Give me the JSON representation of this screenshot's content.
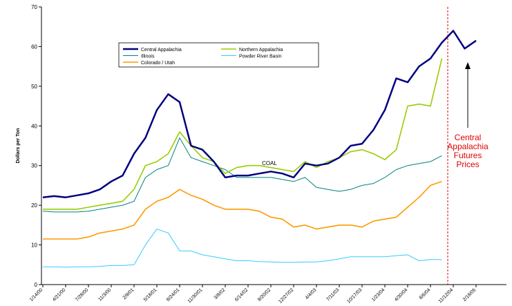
{
  "chart_data": {
    "type": "line",
    "y_label": "Dollars per Ton",
    "categories": [
      "1/14/00",
      null,
      "4/21/00",
      null,
      "7/28/00",
      null,
      "11/3/00",
      null,
      "2/9/01",
      null,
      "5/18/01",
      null,
      "8/24/01",
      null,
      "11/30/01",
      null,
      "3/8/02",
      null,
      "6/14/02",
      null,
      "9/20/02",
      null,
      "12/27/02",
      null,
      "4/4/03",
      null,
      "7/11/03",
      null,
      "10/17/03",
      null,
      "1/23/04",
      null,
      "4/30/04",
      null,
      "8/6/04",
      null,
      "11/12/04",
      null,
      "2/18/05",
      null,
      null
    ],
    "series": [
      {
        "name": "Central Appalachia",
        "color": "#000080",
        "values": [
          22,
          22.3,
          22,
          22.5,
          23,
          24,
          26,
          27.5,
          33,
          37,
          44,
          48,
          46,
          35,
          34,
          31,
          27,
          27.5,
          27.5,
          28,
          28.5,
          28,
          27,
          30.5,
          30,
          30.5,
          32,
          35,
          35.5,
          39,
          44,
          52,
          51,
          55,
          57,
          61,
          64,
          59.5,
          61.5,
          null,
          null
        ]
      },
      {
        "name": "Illinois",
        "color": "#008080",
        "values": [
          18.5,
          18.3,
          18.3,
          18.3,
          18.5,
          19,
          19.5,
          20,
          21,
          27,
          29,
          30,
          37,
          32,
          31,
          30,
          29,
          27,
          27,
          27,
          27,
          26.5,
          26,
          27,
          24.5,
          24,
          23.5,
          24,
          25,
          25.5,
          27,
          29,
          30,
          30.5,
          31,
          32.5,
          null,
          null,
          null,
          null,
          null
        ]
      },
      {
        "name": "Colorado / Utah",
        "color": "#ff9900",
        "values": [
          11.5,
          11.5,
          11.5,
          11.5,
          12,
          13,
          13.5,
          14,
          15,
          19,
          21,
          22,
          24,
          22.5,
          21.5,
          20,
          19,
          19,
          19,
          18.5,
          17,
          16.5,
          14.5,
          15,
          14,
          14.5,
          15,
          15,
          14.5,
          16,
          16.5,
          17,
          19.5,
          22,
          25,
          26,
          null,
          null,
          null,
          null,
          null
        ]
      },
      {
        "name": "Northern Appalachia",
        "color": "#99cc00",
        "values": [
          19,
          19,
          19,
          19,
          19.5,
          20,
          20.5,
          21,
          24,
          30,
          31,
          33,
          38.5,
          35,
          32,
          31,
          28,
          29.5,
          30,
          30,
          29.5,
          29,
          28.5,
          31,
          29.5,
          31,
          32,
          33.5,
          34,
          33,
          31.5,
          34,
          45,
          45.5,
          45,
          57,
          null,
          null,
          null,
          null,
          null
        ]
      },
      {
        "name": "Powder River Basin",
        "color": "#33ccff",
        "values": [
          4.5,
          4.5,
          4.4,
          4.5,
          4.5,
          4.6,
          4.8,
          4.8,
          5,
          10,
          14,
          13,
          8.5,
          8.5,
          7.5,
          7,
          6.5,
          6,
          6,
          5.8,
          5.7,
          5.6,
          5.6,
          5.7,
          5.7,
          6,
          6.5,
          7,
          7,
          7,
          7,
          7.3,
          7.5,
          6,
          6.3,
          6.3,
          null,
          null,
          null,
          null,
          null
        ]
      }
    ],
    "ylim": [
      0,
      70
    ],
    "yticks": [
      0,
      10,
      20,
      30,
      40,
      50,
      60,
      70
    ],
    "grid": false,
    "annotations": {
      "coal": "COAL",
      "futures": [
        "Central",
        "Appalachia",
        "Futures",
        "Prices"
      ]
    }
  }
}
